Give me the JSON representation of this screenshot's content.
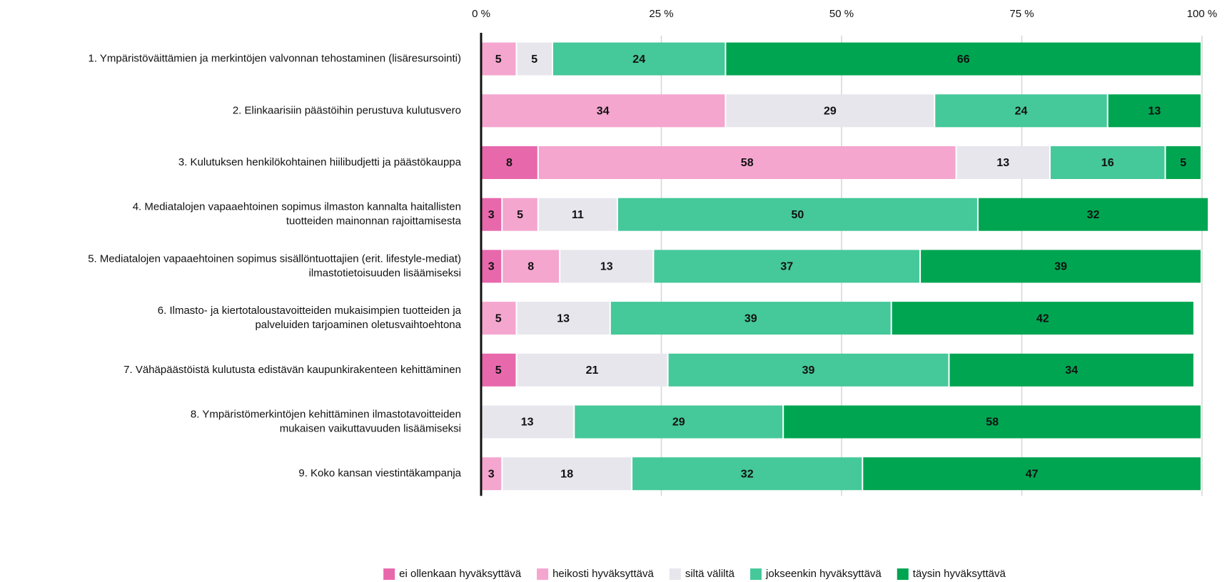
{
  "chart_data": {
    "type": "stacked-bar-horizontal",
    "categories": [
      [
        "1. Ympäristöväittämien ja merkintöjen valvonnan tehostaminen (lisäresursointi)"
      ],
      [
        "2. Elinkaarisiin päästöihin perustuva kulutusvero"
      ],
      [
        "3. Kulutuksen henkilökohtainen hiilibudjetti ja päästökauppa"
      ],
      [
        "4. Mediatalojen vapaaehtoinen sopimus ilmaston kannalta haitallisten",
        "tuotteiden mainonnan rajoittamisesta"
      ],
      [
        "5. Mediatalojen vapaaehtoinen sopimus sisällöntuottajien (erit. lifestyle-mediat)",
        "ilmastotietoisuuden lisäämiseksi"
      ],
      [
        "6. Ilmasto- ja kiertotaloustavoitteiden mukaisimpien tuotteiden ja",
        "palveluiden tarjoaminen oletusvaihtoehtona"
      ],
      [
        "7. Vähäpäästöistä kulutusta edistävän kaupunkirakenteen kehittäminen"
      ],
      [
        "8. Ympäristömerkintöjen kehittäminen ilmastotavoitteiden",
        "mukaisen vaikuttavuuden lisäämiseksi"
      ],
      [
        "9. Koko kansan viestintäkampanja"
      ]
    ],
    "series": [
      {
        "name": "ei ollenkaan hyväksyttävä",
        "color": "#e868ac",
        "values": [
          null,
          null,
          8,
          3,
          3,
          null,
          5,
          null,
          null
        ]
      },
      {
        "name": "heikosti hyväksyttävä",
        "color": "#f4a6cf",
        "values": [
          5,
          34,
          58,
          5,
          8,
          5,
          null,
          null,
          3
        ]
      },
      {
        "name": "siltä väliltä",
        "color": "#e8e6ed",
        "values": [
          5,
          29,
          13,
          11,
          13,
          13,
          21,
          13,
          18
        ]
      },
      {
        "name": "jokseenkin hyväksyttävä",
        "color": "#45c89a",
        "values": [
          24,
          24,
          16,
          50,
          37,
          39,
          39,
          29,
          32
        ]
      },
      {
        "name": "täysin hyväksyttävä",
        "color": "#00a551",
        "values": [
          66,
          13,
          5,
          32,
          39,
          42,
          34,
          58,
          47
        ]
      }
    ],
    "xlim": [
      0,
      100
    ],
    "xticks": [
      {
        "value": 0,
        "label": "0 %"
      },
      {
        "value": 25,
        "label": "25 %"
      },
      {
        "value": 50,
        "label": "50 %"
      },
      {
        "value": 75,
        "label": "75 %"
      },
      {
        "value": 100,
        "label": "100 %"
      }
    ],
    "grid": true,
    "legend": "bottom"
  }
}
